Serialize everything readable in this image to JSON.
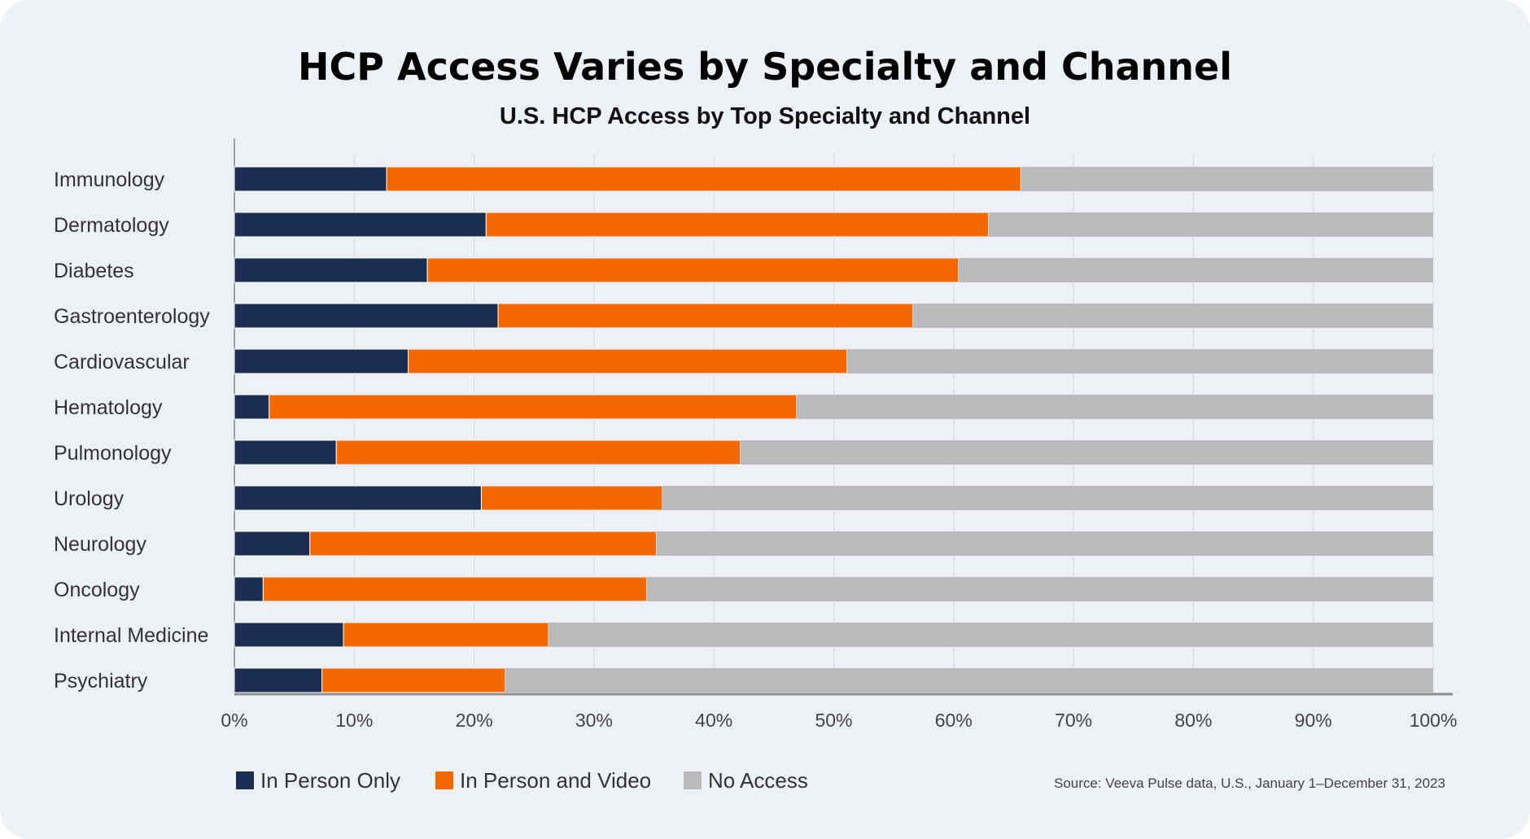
{
  "chart_data": {
    "type": "bar",
    "orientation": "horizontal",
    "stacked": true,
    "title": "HCP Access Varies by Specialty and Channel",
    "subtitle": "U.S. HCP Access by Top Specialty and Channel",
    "categories": [
      "Immunology",
      "Dermatology",
      "Diabetes",
      "Gastroenterology",
      "Cardiovascular",
      "Hematology",
      "Pulmonology",
      "Urology",
      "Neurology",
      "Oncology",
      "Internal Medicine",
      "Psychiatry"
    ],
    "series": [
      {
        "name": "In Person Only",
        "color": "#1b2d52",
        "values": [
          12.7,
          21.0,
          16.1,
          22.0,
          14.5,
          2.9,
          8.5,
          20.6,
          6.3,
          2.4,
          9.1,
          7.3
        ]
      },
      {
        "name": "In Person and Video",
        "color": "#f46800",
        "values": [
          52.9,
          41.9,
          44.3,
          34.6,
          36.6,
          44.0,
          33.7,
          15.1,
          28.9,
          32.0,
          17.1,
          15.3
        ]
      },
      {
        "name": "No Access",
        "color": "#bababa",
        "values": [
          34.4,
          37.1,
          39.6,
          43.4,
          48.9,
          53.1,
          57.8,
          64.3,
          64.8,
          65.6,
          73.8,
          77.4
        ]
      }
    ],
    "xlim": [
      0,
      100
    ],
    "xticks": [
      "0%",
      "10%",
      "20%",
      "30%",
      "40%",
      "50%",
      "60%",
      "70%",
      "80%",
      "90%",
      "100%"
    ],
    "xlabel": "",
    "ylabel": "",
    "grid": true,
    "legend_position": "bottom-left",
    "source": "Source: Veeva Pulse data, U.S., January 1–December 31, 2023"
  }
}
